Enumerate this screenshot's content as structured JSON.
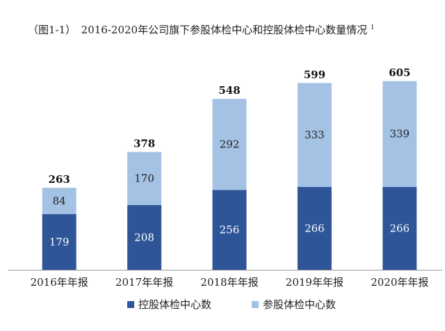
{
  "chart_data": {
    "type": "bar",
    "stacked": true,
    "title": "（图1-1）　2016-2020年公司旗下参股体检中心和控股体检中心数量情况",
    "title_superscript": "1",
    "categories": [
      "2016年年报",
      "2017年年报",
      "2018年年报",
      "2019年年报",
      "2020年年报"
    ],
    "series": [
      {
        "name": "控股体检中心数",
        "values": [
          179,
          208,
          256,
          266,
          266
        ],
        "color": "#2e5597",
        "label_color": "#ffffff"
      },
      {
        "name": "参股体检中心数",
        "values": [
          84,
          170,
          292,
          333,
          339
        ],
        "color": "#a4c2e4",
        "label_color": "#222222"
      }
    ],
    "totals": [
      263,
      378,
      548,
      599,
      605
    ],
    "ylim": [
      0,
      660
    ],
    "grid": false,
    "legend_position": "bottom",
    "xlabel": "",
    "ylabel": ""
  }
}
